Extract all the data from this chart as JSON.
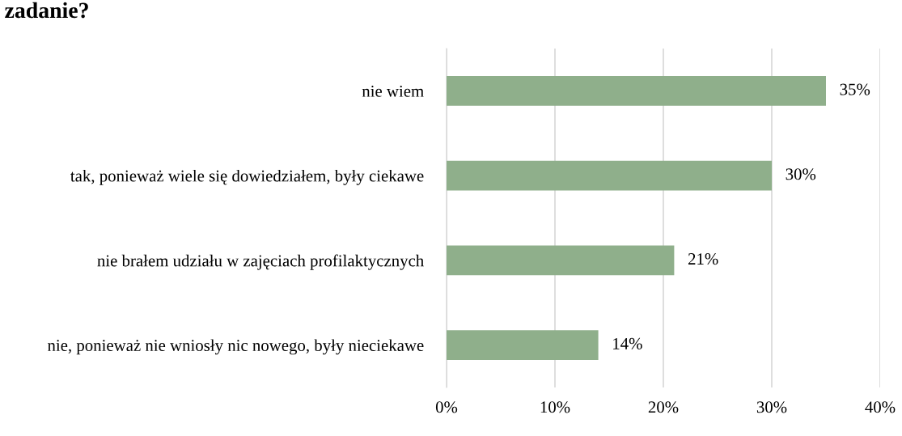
{
  "chart_data": {
    "type": "bar",
    "orientation": "horizontal",
    "title": "zadanie?",
    "categories": [
      "nie wiem",
      "tak, ponieważ wiele się dowiedziałem, były ciekawe",
      "nie brałem udziału w zajęciach profilaktycznych",
      "nie, ponieważ nie wniosły nic nowego, były nieciekawe"
    ],
    "values": [
      35,
      30,
      21,
      14
    ],
    "color": "#8faf8b",
    "data_labels": true,
    "value_labels": [
      "35%",
      "30%",
      "21%",
      "14%"
    ],
    "xlim": [
      0,
      40
    ],
    "xticks": [
      {
        "value": 0,
        "label": "0%"
      },
      {
        "value": 10,
        "label": "10%"
      },
      {
        "value": 20,
        "label": "20%"
      },
      {
        "value": 30,
        "label": "30%"
      },
      {
        "value": 40,
        "label": "40%"
      }
    ],
    "grid": "x"
  }
}
